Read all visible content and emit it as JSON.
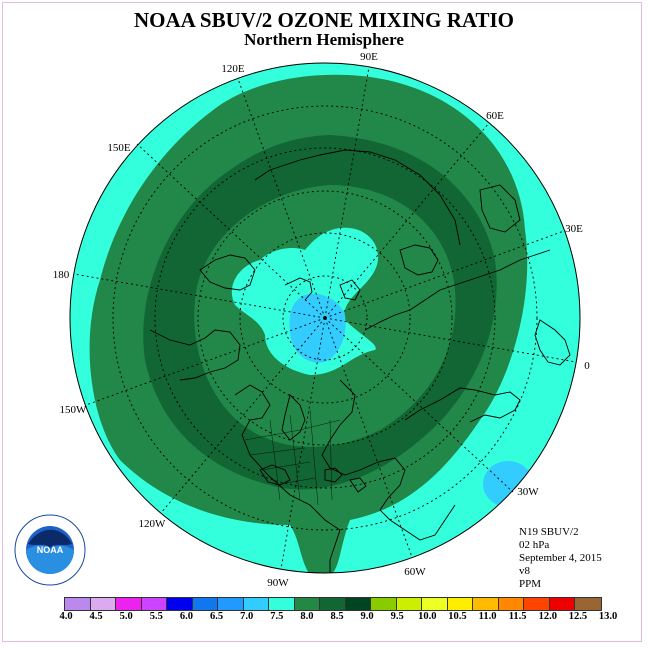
{
  "title": "NOAA SBUV/2 OZONE MIXING RATIO",
  "subtitle": "Northern Hemisphere",
  "longitude_labels": [
    "90E",
    "60E",
    "30E",
    "0",
    "30W",
    "60W",
    "90W",
    "120W",
    "150W",
    "180",
    "150E",
    "120E"
  ],
  "info": {
    "satellite": "N19 SBUV/2",
    "level": "02 hPa",
    "date": "September 4, 2015",
    "version": "v8",
    "units": "PPM"
  },
  "colorbar": {
    "colors": [
      "#bb88ee",
      "#ddaaf0",
      "#ee22ee",
      "#cc44ff",
      "#0000ee",
      "#1177ee",
      "#2299ff",
      "#33ccff",
      "#33ffdd",
      "#228844",
      "#116633",
      "#004422",
      "#88cc00",
      "#ccee00",
      "#eeff22",
      "#ffee00",
      "#ffbb00",
      "#ff8800",
      "#ff4400",
      "#ee0000",
      "#996633"
    ],
    "ticks": [
      "4.0",
      "4.5",
      "5.0",
      "5.5",
      "6.0",
      "6.5",
      "7.0",
      "7.5",
      "8.0",
      "8.5",
      "9.0",
      "9.5",
      "10.0",
      "10.5",
      "11.0",
      "11.5",
      "12.0",
      "12.5",
      "13.0"
    ]
  },
  "map_colors": {
    "outer": "#33ffdd",
    "band": "#22884a",
    "core": "#116633",
    "inner": "#33ffdd",
    "pole": "#33ccff",
    "blob": "#33ccff"
  },
  "logo_text": "NOAA"
}
